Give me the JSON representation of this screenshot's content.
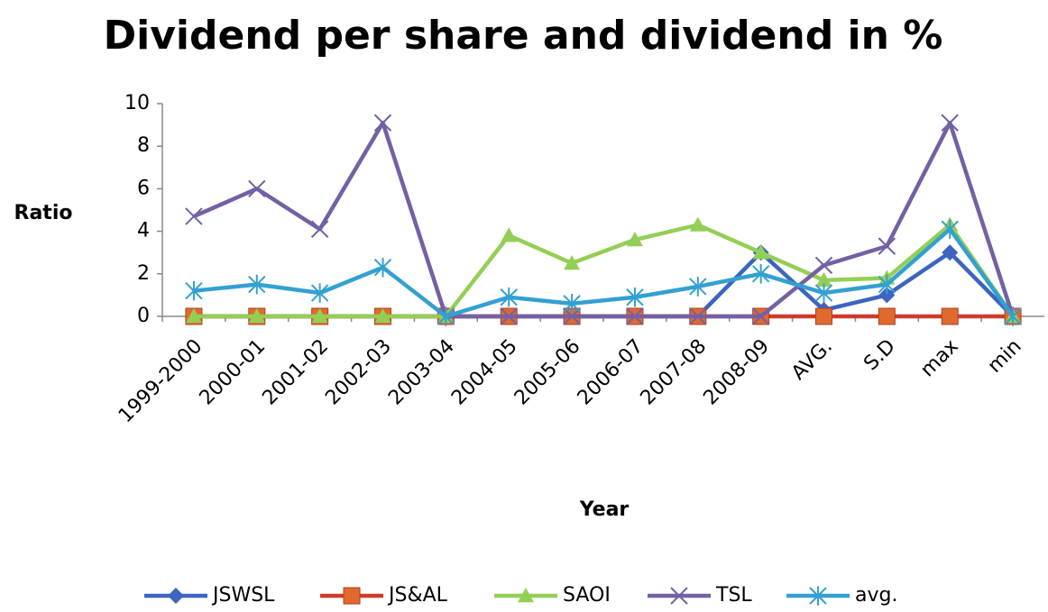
{
  "chart_data": {
    "type": "line",
    "title": "Dividend per share and dividend in %",
    "xlabel": "Year",
    "ylabel": "Ratio",
    "categories": [
      "1999-2000",
      "2000-01",
      "2001-02",
      "2002-03",
      "2003-04",
      "2004-05",
      "2005-06",
      "2006-07",
      "2007-08",
      "2008-09",
      "AVG.",
      "S.D",
      "max",
      "min"
    ],
    "series": [
      {
        "name": "JSWSL",
        "color": "#3c64c0",
        "marker": "diamond",
        "marker_color": "#3c64c0",
        "values": [
          0,
          0,
          0,
          0,
          0,
          0,
          0,
          0,
          0,
          3,
          0.3,
          1,
          3,
          0
        ]
      },
      {
        "name": "JS&AL",
        "color": "#d13a2a",
        "marker": "square",
        "marker_color": "#e0692e",
        "values": [
          0,
          0,
          0,
          0,
          0,
          0,
          0,
          0,
          0,
          0,
          0,
          0,
          0,
          0
        ]
      },
      {
        "name": "SAOI",
        "color": "#93cf55",
        "marker": "triangle",
        "marker_color": "#93cf55",
        "values": [
          0,
          0,
          0,
          0,
          0,
          3.8,
          2.5,
          3.6,
          4.3,
          3.0,
          1.7,
          1.8,
          4.3,
          0
        ]
      },
      {
        "name": "TSL",
        "color": "#7460a4",
        "marker": "x",
        "marker_color": "#7460a4",
        "values": [
          4.7,
          6,
          4.1,
          9.1,
          0,
          0,
          0,
          0,
          0,
          0,
          2.4,
          3.3,
          9.1,
          0
        ]
      },
      {
        "name": "avg.",
        "color": "#33a0d2",
        "marker": "star",
        "marker_color": "#33a0d2",
        "values": [
          1.2,
          1.5,
          1.1,
          2.3,
          0,
          0.9,
          0.6,
          0.9,
          1.4,
          2.0,
          1.1,
          1.5,
          4.1,
          0
        ]
      }
    ],
    "ylim": [
      0,
      10
    ],
    "yticks": [
      0,
      2,
      4,
      6,
      8,
      10
    ],
    "grid": false,
    "legend": "bottom"
  }
}
